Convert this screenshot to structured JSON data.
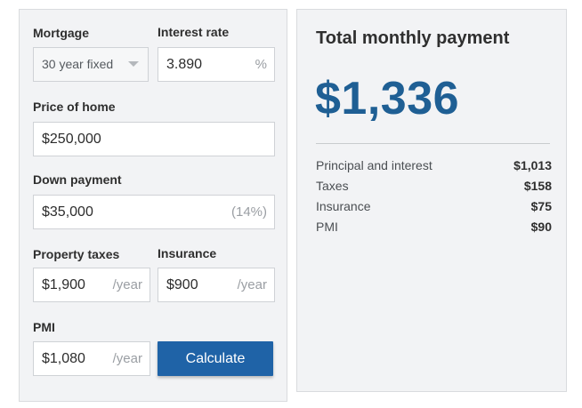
{
  "form": {
    "mortgage_label": "Mortgage",
    "mortgage_value": "30 year fixed",
    "interest_label": "Interest rate",
    "interest_value": "3.890",
    "interest_suffix": "%",
    "price_label": "Price of home",
    "price_value": "$250,000",
    "down_label": "Down payment",
    "down_value": "$35,000",
    "down_pct": "(14%)",
    "taxes_label": "Property taxes",
    "taxes_value": "$1,900",
    "taxes_suffix": "/year",
    "insurance_label": "Insurance",
    "insurance_value": "$900",
    "insurance_suffix": "/year",
    "pmi_label": "PMI",
    "pmi_value": "$1,080",
    "pmi_suffix": "/year",
    "calculate_label": "Calculate"
  },
  "result": {
    "title": "Total monthly payment",
    "total": "$1,336",
    "total_color": "#1f5f94",
    "rows": [
      {
        "name": "Principal and interest",
        "value": "$1,013"
      },
      {
        "name": "Taxes",
        "value": "$158"
      },
      {
        "name": "Insurance",
        "value": "$75"
      },
      {
        "name": "PMI",
        "value": "$90"
      }
    ]
  },
  "colors": {
    "button": "#1f63a7",
    "panel": "#f2f3f5"
  },
  "icons": {
    "select_caret": "chevron-down-icon"
  }
}
